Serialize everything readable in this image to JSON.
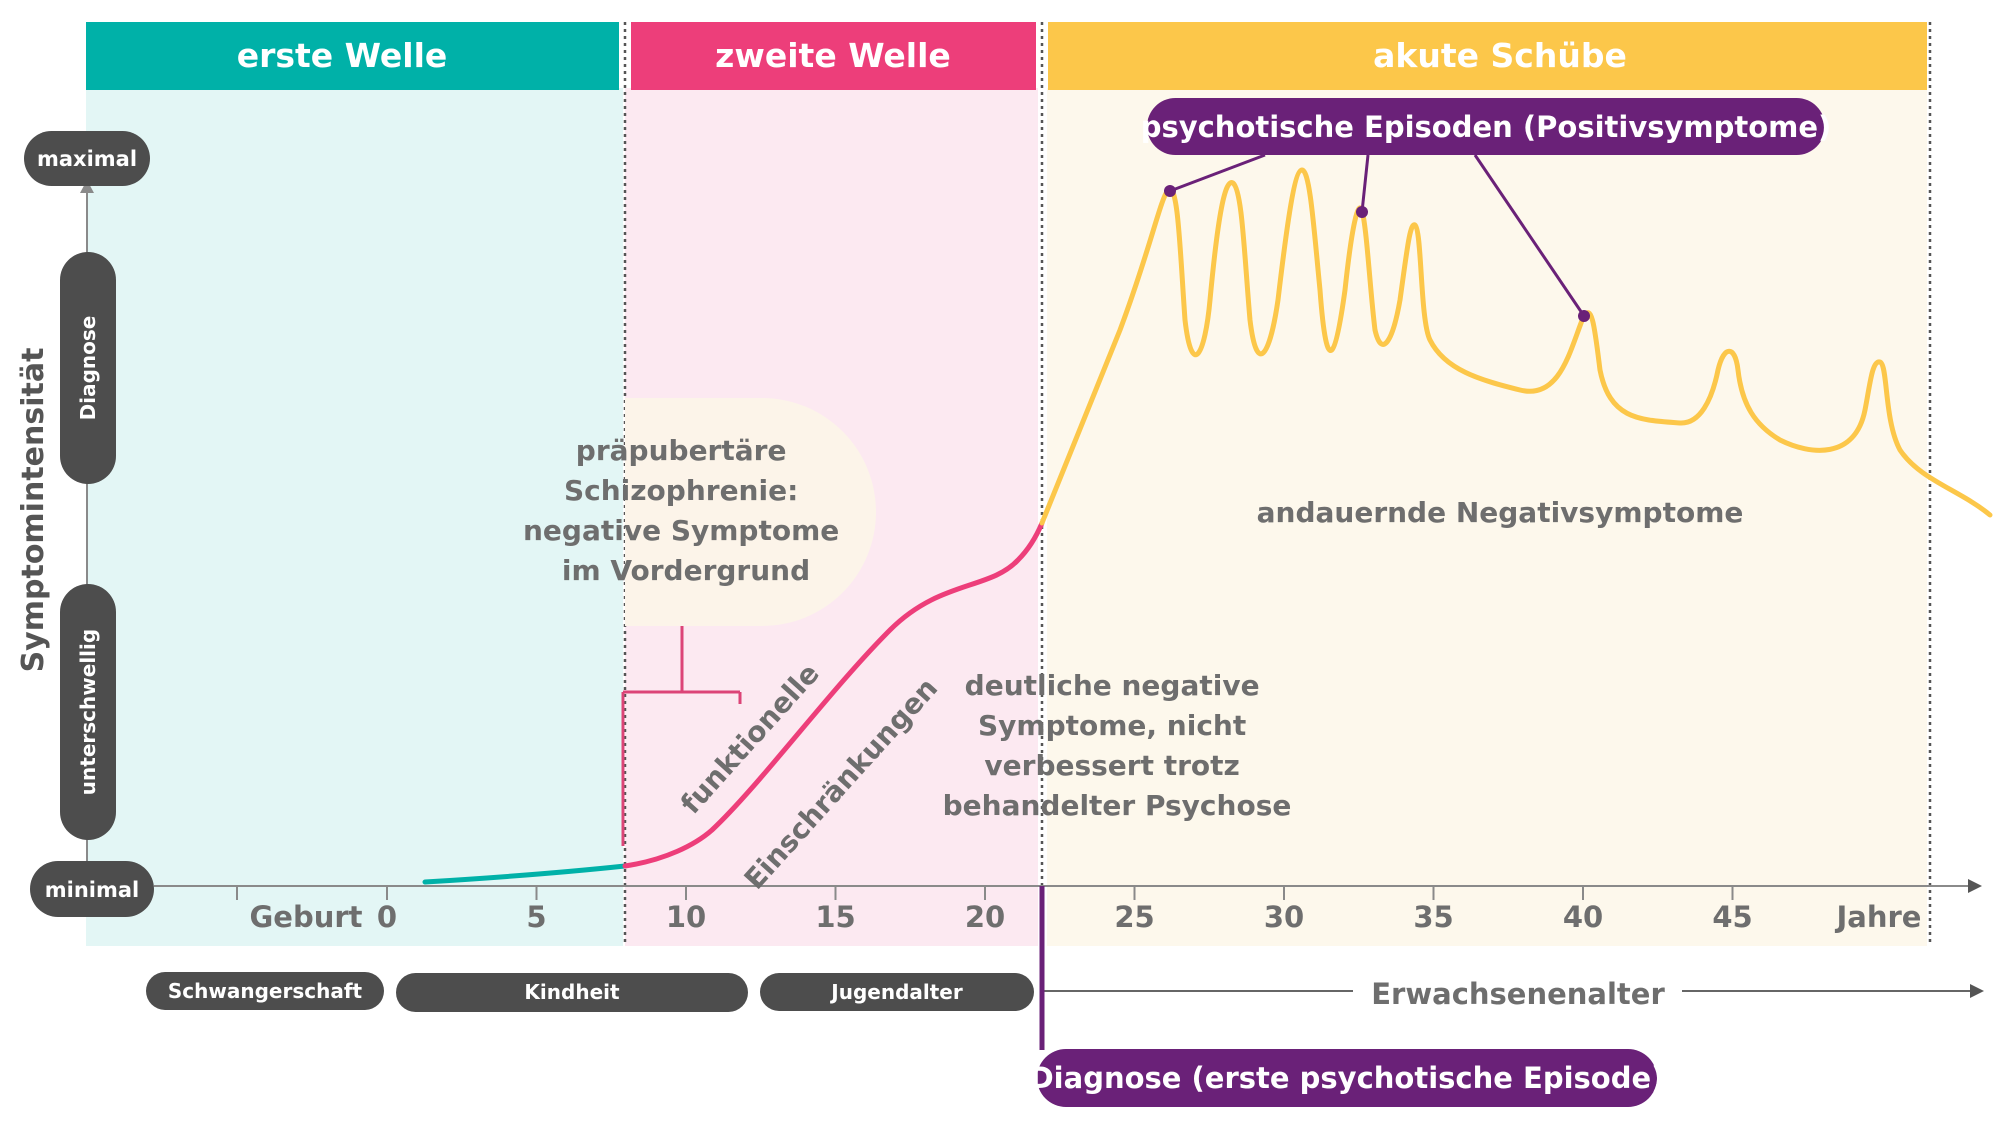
{
  "phases": {
    "first": {
      "label": "erste Welle",
      "color": "#00b1a8",
      "bg": "#e3f6f5"
    },
    "second": {
      "label": "zweite Welle",
      "color": "#ed3e7a",
      "bg": "#fce9f1"
    },
    "third": {
      "label": "akute Schübe",
      "color": "#fcc74a",
      "bg": "#fdf8ec"
    }
  },
  "y_axis": {
    "title": "Symptomintensität",
    "max_label": "maximal",
    "min_label": "minimal",
    "diagnose_label": "Diagnose",
    "subthreshold_label": "unterschwellig"
  },
  "x_axis": {
    "birth_label": "Geburt",
    "ticks": [
      "0",
      "5",
      "10",
      "15",
      "20",
      "25",
      "30",
      "35",
      "40",
      "45"
    ],
    "unit_label": "Jahre"
  },
  "life_stages": {
    "pregnancy": "Schwangerschaft",
    "childhood": "Kindheit",
    "adolescence": "Jugendalter",
    "adulthood": "Erwachsenenalter"
  },
  "annotations": {
    "prepubertal": [
      "präpubertäre",
      "Schizophrenie:",
      "negative Symptome",
      "im Vordergrund"
    ],
    "functional_1": "funktionelle",
    "functional_2": "Einschränkungen",
    "negative_not_improved": [
      "deutliche negative",
      "Symptome, nicht",
      "verbessert trotz",
      "behandelter Psychose"
    ],
    "persistent_negative": "andauernde Negativsymptome",
    "psychotic_episodes": "psychotische Episoden (Positivsymptome)",
    "diagnosis": "Diagnose (erste psychotische Episode)"
  },
  "colors": {
    "dark_pill": "#4d4d4d",
    "purple": "#6a2178",
    "axis": "#8a8a8a",
    "text_gray": "#6e6e6e"
  }
}
